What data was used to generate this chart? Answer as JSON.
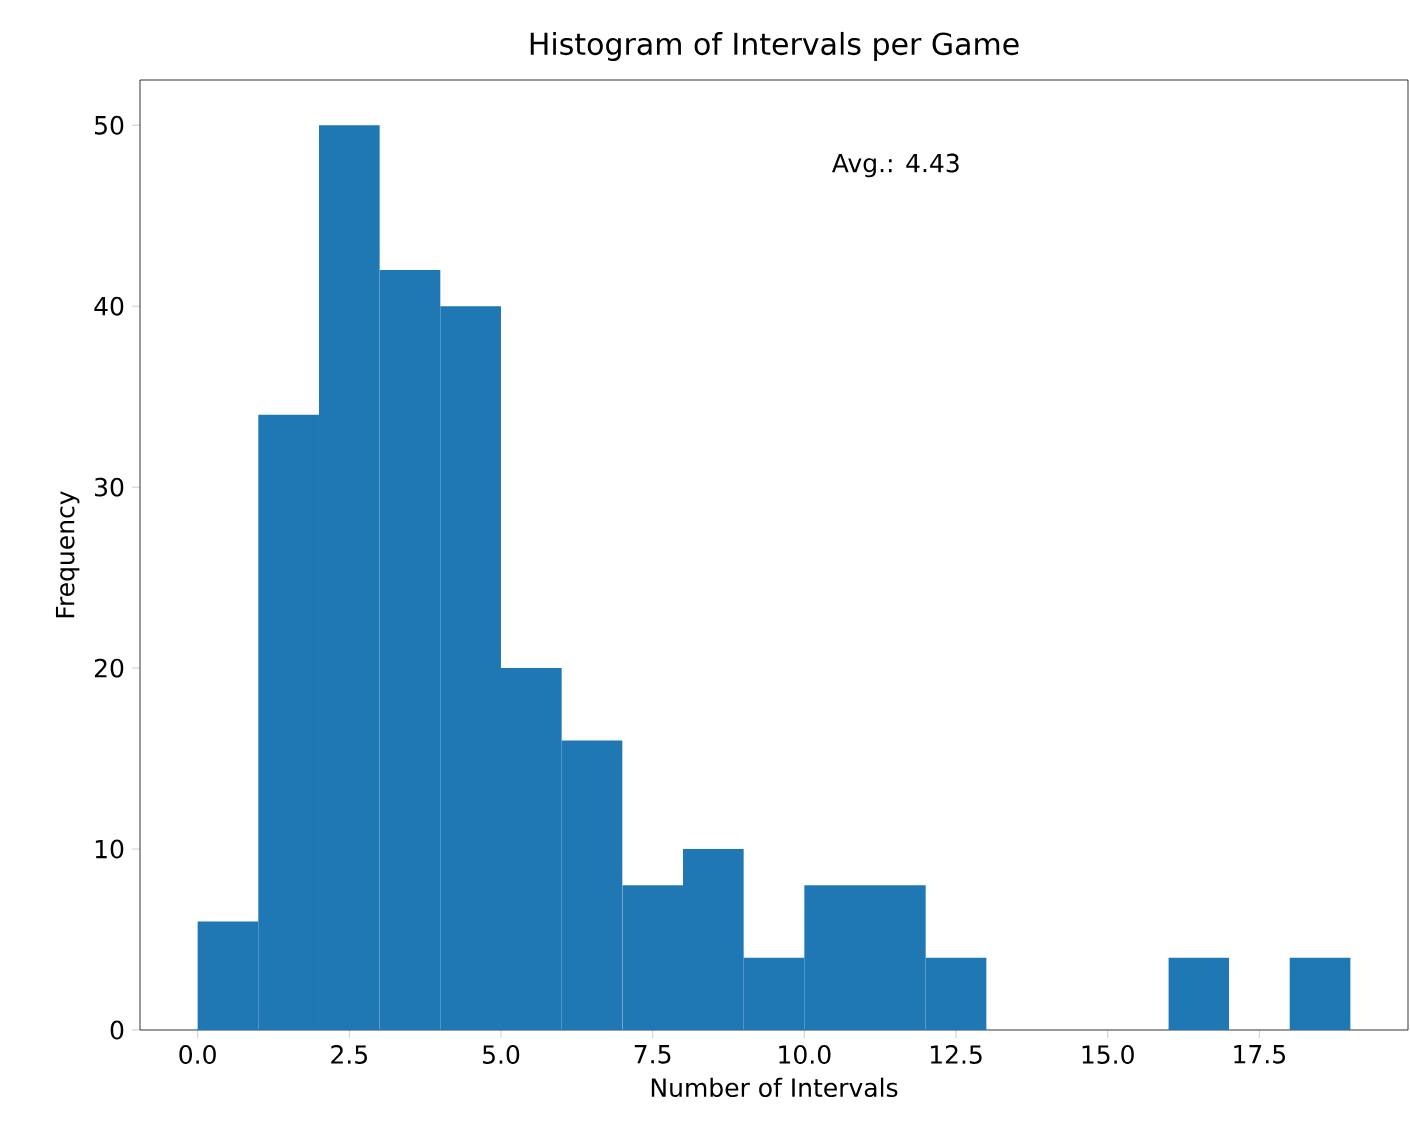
{
  "chart_data": {
    "type": "histogram",
    "title": "Histogram of Intervals per Game",
    "xlabel": "Number of Intervals",
    "ylabel": "Frequency",
    "bins": [
      0,
      1,
      2,
      3,
      4,
      5,
      6,
      7,
      8,
      9,
      10,
      11,
      12,
      13,
      14,
      15,
      16,
      17,
      18,
      19
    ],
    "values": [
      6,
      34,
      50,
      42,
      40,
      20,
      16,
      8,
      10,
      4,
      8,
      8,
      4,
      0,
      0,
      0,
      4,
      0,
      4
    ],
    "color": "#1f77b4",
    "xlim": [
      -0.95,
      19.95
    ],
    "ylim": [
      0,
      52.5
    ],
    "xticks": [
      {
        "value": 0,
        "label": "0.0"
      },
      2.5,
      {
        "value": 5,
        "label": "5.0"
      },
      7.5,
      {
        "value": 10,
        "label": "10.0"
      },
      12.5,
      {
        "value": 15,
        "label": "15.0"
      },
      17.5
    ],
    "yticks": [
      0,
      10,
      20,
      30,
      40,
      50
    ],
    "annotations": [
      "Avg.: 4.43"
    ]
  }
}
